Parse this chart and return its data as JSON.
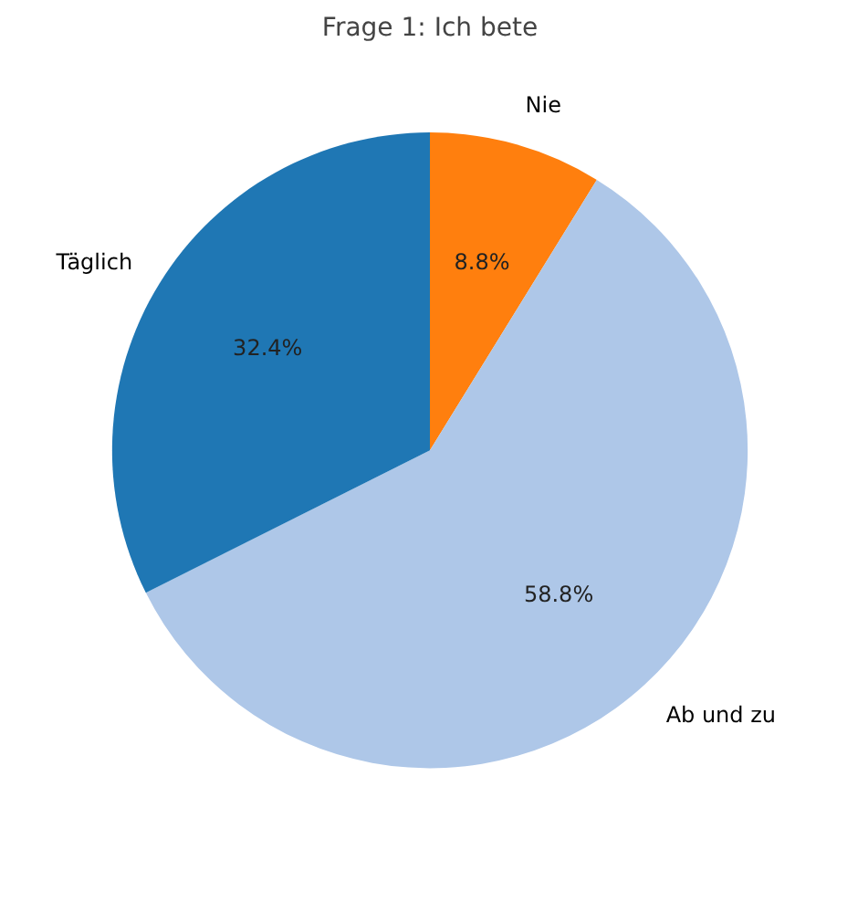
{
  "chart_data": {
    "type": "pie",
    "title": "Frage 1: Ich bete",
    "categories": [
      "Nie",
      "Ab und zu",
      "Täglich"
    ],
    "values": [
      8.8,
      58.8,
      32.4
    ],
    "value_labels": [
      "8.8%",
      "58.8%",
      "32.4%"
    ],
    "colors": [
      "#ff7f0e",
      "#aec7e8",
      "#1f77b4"
    ]
  }
}
